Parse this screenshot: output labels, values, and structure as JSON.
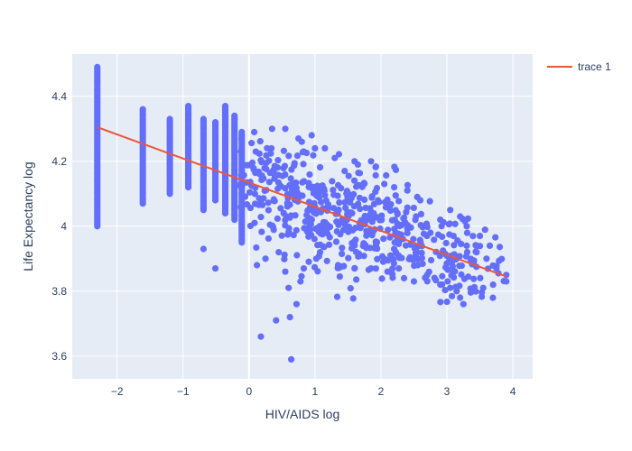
{
  "chart_data": {
    "type": "scatter",
    "xlabel": "HIV/AIDS log",
    "ylabel": "Life Expectancy log",
    "xlim": [
      -2.68,
      4.3
    ],
    "ylim": [
      3.53,
      4.53
    ],
    "xticks": [
      -2,
      -1,
      0,
      1,
      2,
      3,
      4
    ],
    "yticks": [
      3.6,
      3.8,
      4,
      4.2,
      4.4
    ],
    "xtick_labels": [
      "−2",
      "−1",
      "0",
      "1",
      "2",
      "3",
      "4"
    ],
    "ytick_labels": [
      "3.6",
      "3.8",
      "4",
      "4.2",
      "4.4"
    ],
    "legend_position": "top-right",
    "colors": {
      "background": "#e5ecf6",
      "grid": "#ffffff",
      "markers": "#636efa",
      "trendline": "#ef553b"
    },
    "series": [
      {
        "type": "scatter",
        "columns": [
          {
            "x": -2.3,
            "ymin": 4.0,
            "ymax": 4.49
          },
          {
            "x": -1.61,
            "ymin": 4.07,
            "ymax": 4.36
          },
          {
            "x": -1.2,
            "ymin": 4.1,
            "ymax": 4.33
          },
          {
            "x": -0.92,
            "ymin": 4.12,
            "ymax": 4.37
          },
          {
            "x": -0.69,
            "ymin": 4.05,
            "ymax": 4.33
          },
          {
            "x": -0.51,
            "ymin": 4.08,
            "ymax": 4.32
          },
          {
            "x": -0.36,
            "ymin": 4.04,
            "ymax": 4.37
          },
          {
            "x": -0.22,
            "ymin": 4.02,
            "ymax": 4.34
          },
          {
            "x": -0.11,
            "ymin": 3.95,
            "ymax": 4.29
          }
        ],
        "points": [
          [
            -0.69,
            3.93
          ],
          [
            -0.51,
            3.87
          ],
          [
            0.18,
            3.66
          ],
          [
            0.41,
            3.71
          ],
          [
            0.64,
            3.59
          ],
          [
            0.62,
            3.72
          ],
          [
            0.72,
            3.76
          ],
          [
            0.6,
            3.81
          ],
          [
            0.78,
            3.83
          ],
          [
            0.83,
            3.87
          ],
          [
            0.12,
            3.88
          ],
          [
            0.25,
            3.9
          ],
          [
            0.45,
            3.92
          ],
          [
            0.55,
            3.86
          ],
          [
            1.02,
            3.9
          ],
          [
            1.35,
            3.88
          ],
          [
            1.6,
            3.87
          ],
          [
            1.85,
            3.87
          ],
          [
            2.1,
            3.86
          ],
          [
            2.35,
            3.84
          ],
          [
            2.5,
            3.83
          ],
          [
            2.7,
            3.85
          ],
          [
            2.9,
            3.82
          ],
          [
            3.05,
            3.81
          ],
          [
            3.2,
            3.78
          ],
          [
            3.25,
            3.76
          ],
          [
            3.4,
            3.8
          ],
          [
            3.55,
            3.81
          ],
          [
            3.7,
            3.82
          ],
          [
            3.9,
            3.83
          ],
          [
            3.9,
            3.85
          ],
          [
            3.75,
            3.87
          ],
          [
            3.6,
            3.9
          ],
          [
            3.45,
            3.92
          ],
          [
            3.3,
            3.94
          ],
          [
            3.1,
            3.97
          ],
          [
            3.3,
            4.0
          ],
          [
            3.5,
            3.97
          ],
          [
            3.65,
            3.94
          ],
          [
            3.2,
            4.03
          ],
          [
            3.05,
            4.05
          ],
          [
            2.9,
            4.02
          ],
          [
            2.75,
            3.98
          ],
          [
            2.6,
            3.95
          ],
          [
            0.35,
            4.3
          ],
          [
            0.55,
            4.3
          ],
          [
            0.75,
            4.27
          ],
          [
            0.95,
            4.28
          ],
          [
            1.15,
            4.24
          ],
          [
            1.3,
            4.21
          ],
          [
            1.45,
            4.17
          ],
          [
            1.65,
            4.19
          ],
          [
            1.85,
            4.2
          ],
          [
            2.05,
            4.13
          ],
          [
            2.2,
            4.12
          ],
          [
            2.4,
            4.11
          ],
          [
            2.55,
            4.09
          ],
          [
            1.6,
            4.2
          ],
          [
            1.0,
            4.24
          ],
          [
            0.8,
            4.26
          ]
        ],
        "clusters": [
          {
            "cx": 0.3,
            "cy": 4.14,
            "sx": 0.35,
            "sy": 0.06,
            "n": 110
          },
          {
            "cx": 1.0,
            "cy": 4.06,
            "sx": 0.45,
            "sy": 0.07,
            "n": 140
          },
          {
            "cx": 1.8,
            "cy": 4.02,
            "sx": 0.45,
            "sy": 0.07,
            "n": 110
          },
          {
            "cx": 2.6,
            "cy": 3.93,
            "sx": 0.45,
            "sy": 0.06,
            "n": 90
          },
          {
            "cx": 3.4,
            "cy": 3.87,
            "sx": 0.3,
            "sy": 0.05,
            "n": 60
          },
          {
            "cx": 1.5,
            "cy": 3.93,
            "sx": 0.6,
            "sy": 0.05,
            "n": 50
          }
        ]
      },
      {
        "type": "line",
        "name": "trace 1",
        "x": [
          -2.3,
          3.9
        ],
        "y": [
          4.305,
          3.845
        ]
      }
    ]
  }
}
